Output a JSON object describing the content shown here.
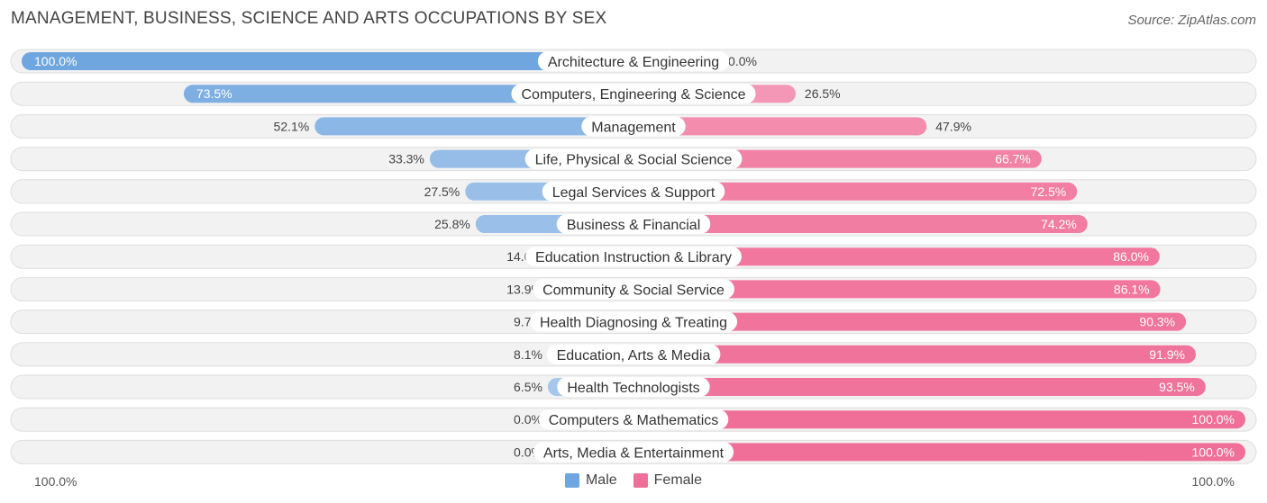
{
  "title": "MANAGEMENT, BUSINESS, SCIENCE AND ARTS OCCUPATIONS BY SEX",
  "source": "Source: ZipAtlas.com",
  "colors": {
    "male_strong": "#6fa6e0",
    "male_light": "#a9c9ec",
    "female_strong": "#f06f99",
    "female_light": "#f6a6c0",
    "track": "#efefef"
  },
  "legend": {
    "male": "Male",
    "female": "Female"
  },
  "axis": {
    "left_label": "100.0%",
    "right_label": "100.0%"
  },
  "chart_data": {
    "type": "bar",
    "orientation": "horizontal-diverging",
    "title": "MANAGEMENT, BUSINESS, SCIENCE AND ARTS OCCUPATIONS BY SEX",
    "xlim": [
      -100,
      100
    ],
    "categories": [
      "Architecture & Engineering",
      "Computers, Engineering & Science",
      "Management",
      "Life, Physical & Social Science",
      "Legal Services & Support",
      "Business & Financial",
      "Education Instruction & Library",
      "Community & Social Service",
      "Health Diagnosing & Treating",
      "Education, Arts & Media",
      "Health Technologists",
      "Computers & Mathematics",
      "Arts, Media & Entertainment"
    ],
    "series": [
      {
        "name": "Male",
        "values": [
          100.0,
          73.5,
          52.1,
          33.3,
          27.5,
          25.8,
          14.0,
          13.9,
          9.7,
          8.1,
          6.5,
          0.0,
          0.0
        ],
        "labels": [
          "100.0%",
          "73.5%",
          "52.1%",
          "33.3%",
          "27.5%",
          "25.8%",
          "14.0%",
          "13.9%",
          "9.7%",
          "8.1%",
          "6.5%",
          "0.0%",
          "0.0%"
        ]
      },
      {
        "name": "Female",
        "values": [
          0.0,
          26.5,
          47.9,
          66.7,
          72.5,
          74.2,
          86.0,
          86.1,
          90.3,
          91.9,
          93.5,
          100.0,
          100.0
        ],
        "labels": [
          "0.0%",
          "26.5%",
          "47.9%",
          "66.7%",
          "72.5%",
          "74.2%",
          "86.0%",
          "86.1%",
          "90.3%",
          "91.9%",
          "93.5%",
          "100.0%",
          "100.0%"
        ]
      }
    ]
  }
}
